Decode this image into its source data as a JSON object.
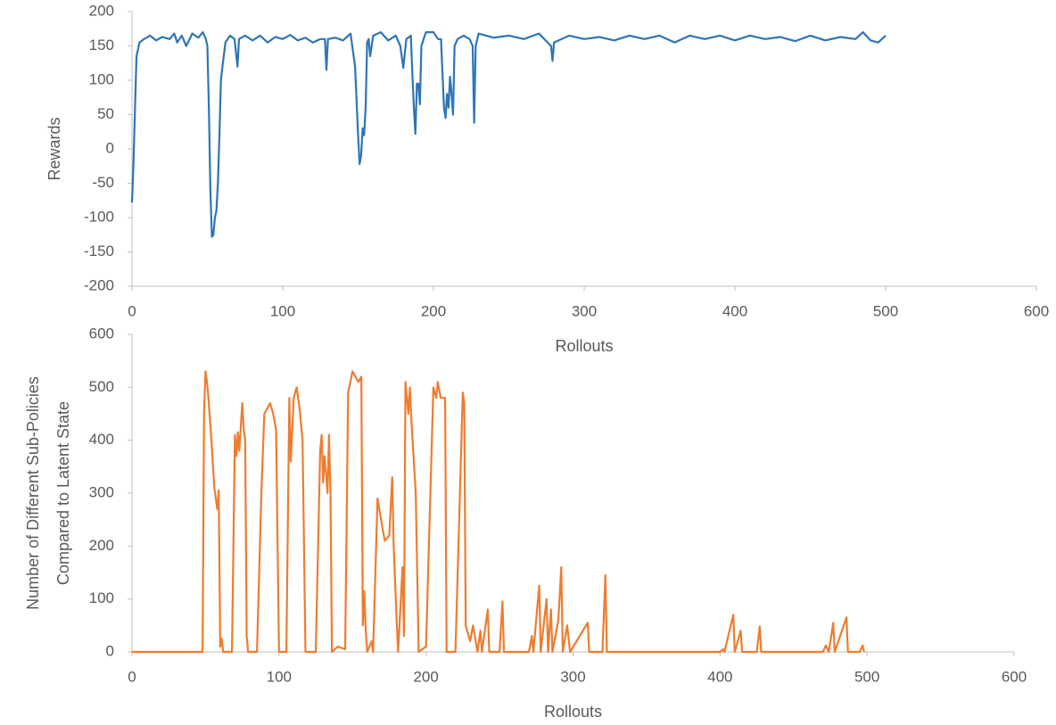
{
  "chart_data": [
    {
      "type": "line",
      "ylabel": [
        "Rewards"
      ],
      "xlabel": "Rollouts",
      "color": "#2e75b6",
      "xlim": [
        0,
        600
      ],
      "xticks": [
        0,
        100,
        200,
        300,
        400,
        500,
        600
      ],
      "ylim": [
        -200,
        200
      ],
      "yticks": [
        -200,
        -150,
        -100,
        -50,
        0,
        50,
        100,
        150,
        200
      ],
      "x": [
        0,
        1,
        2,
        3,
        5,
        8,
        12,
        16,
        20,
        25,
        28,
        30,
        33,
        36,
        40,
        44,
        47,
        49,
        50,
        51,
        52,
        53,
        54,
        55,
        56,
        57,
        58,
        59,
        60,
        62,
        65,
        68,
        70,
        71,
        75,
        80,
        85,
        90,
        95,
        100,
        105,
        110,
        115,
        120,
        125,
        128,
        129,
        130,
        135,
        140,
        145,
        148,
        150,
        151,
        152,
        153,
        154,
        155,
        156,
        157,
        158,
        160,
        165,
        170,
        175,
        178,
        180,
        182,
        185,
        186,
        187,
        188,
        189,
        190,
        191,
        192,
        195,
        200,
        203,
        205,
        207,
        208,
        209,
        210,
        211,
        212,
        213,
        214,
        216,
        220,
        224,
        226,
        227,
        228,
        230,
        240,
        250,
        260,
        270,
        278,
        279,
        280,
        290,
        300,
        310,
        320,
        330,
        340,
        350,
        360,
        370,
        380,
        390,
        400,
        410,
        420,
        430,
        440,
        450,
        460,
        470,
        480,
        485,
        490,
        495,
        500
      ],
      "values": [
        -78,
        -20,
        60,
        135,
        155,
        160,
        165,
        158,
        163,
        160,
        168,
        155,
        165,
        150,
        168,
        162,
        170,
        160,
        150,
        60,
        -60,
        -128,
        -125,
        -100,
        -90,
        -50,
        20,
        100,
        120,
        155,
        165,
        160,
        120,
        160,
        165,
        158,
        165,
        155,
        163,
        160,
        166,
        158,
        162,
        155,
        160,
        160,
        115,
        160,
        162,
        158,
        168,
        120,
        20,
        -22,
        -10,
        30,
        20,
        60,
        155,
        160,
        135,
        165,
        170,
        158,
        165,
        150,
        118,
        160,
        165,
        110,
        60,
        22,
        95,
        95,
        65,
        150,
        170,
        170,
        160,
        160,
        60,
        45,
        80,
        60,
        105,
        80,
        50,
        150,
        160,
        165,
        160,
        150,
        38,
        150,
        168,
        162,
        165,
        160,
        168,
        150,
        128,
        155,
        165,
        160,
        163,
        158,
        165,
        160,
        165,
        155,
        165,
        160,
        165,
        158,
        165,
        160,
        163,
        157,
        165,
        158,
        163,
        160,
        170,
        158,
        155,
        165
      ]
    },
    {
      "type": "line",
      "ylabel": [
        "Number of Different Sub-Policies",
        "Compared to Latent State"
      ],
      "xlabel": "Rollouts",
      "color": "#ed7d31",
      "xlim": [
        0,
        600
      ],
      "xticks": [
        0,
        100,
        200,
        300,
        400,
        500,
        600
      ],
      "ylim": [
        0,
        600
      ],
      "yticks": [
        0,
        100,
        200,
        300,
        400,
        500,
        600
      ],
      "x": [
        0,
        48,
        49,
        50,
        51,
        52,
        54,
        56,
        58,
        59,
        60,
        61,
        62,
        68,
        70,
        71,
        72,
        73,
        75,
        76,
        77,
        78,
        79,
        85,
        88,
        90,
        92,
        94,
        96,
        98,
        100,
        105,
        107,
        108,
        110,
        112,
        114,
        116,
        118,
        125,
        128,
        129,
        130,
        131,
        133,
        134,
        135,
        136,
        140,
        145,
        147,
        150,
        152,
        154,
        156,
        157,
        158,
        159,
        160,
        163,
        164,
        167,
        170,
        172,
        175,
        177,
        178,
        180,
        181,
        184,
        185,
        186,
        188,
        189,
        190,
        193,
        195,
        200,
        205,
        207,
        208,
        210,
        213,
        214,
        220,
        225,
        226,
        227,
        230,
        232,
        235,
        237,
        238,
        242,
        243,
        250,
        252,
        253,
        270,
        272,
        273,
        277,
        278,
        280,
        282,
        283,
        285,
        286,
        290,
        292,
        293,
        296,
        298,
        310,
        311,
        320,
        322,
        323,
        400,
        402,
        403,
        409,
        410,
        414,
        415,
        425,
        427,
        428,
        470,
        472,
        474,
        477,
        478,
        486,
        487,
        495,
        497,
        498
      ],
      "values": [
        0,
        0,
        450,
        530,
        510,
        480,
        400,
        310,
        270,
        305,
        10,
        25,
        0,
        0,
        410,
        370,
        415,
        380,
        470,
        420,
        400,
        30,
        0,
        0,
        300,
        450,
        460,
        470,
        450,
        420,
        0,
        0,
        480,
        360,
        480,
        500,
        460,
        400,
        0,
        0,
        380,
        410,
        320,
        370,
        300,
        410,
        300,
        0,
        10,
        5,
        490,
        530,
        520,
        510,
        520,
        50,
        115,
        40,
        0,
        20,
        0,
        290,
        240,
        210,
        220,
        330,
        200,
        60,
        0,
        160,
        30,
        510,
        450,
        500,
        440,
        300,
        0,
        10,
        500,
        480,
        510,
        480,
        480,
        0,
        0,
        490,
        470,
        50,
        20,
        50,
        0,
        40,
        0,
        80,
        0,
        0,
        95,
        0,
        0,
        30,
        0,
        125,
        0,
        50,
        100,
        0,
        80,
        0,
        60,
        160,
        0,
        50,
        0,
        55,
        0,
        0,
        145,
        0,
        0,
        5,
        0,
        70,
        0,
        40,
        0,
        0,
        48,
        0,
        0,
        12,
        0,
        55,
        0,
        65,
        0,
        0,
        12,
        0
      ]
    }
  ]
}
